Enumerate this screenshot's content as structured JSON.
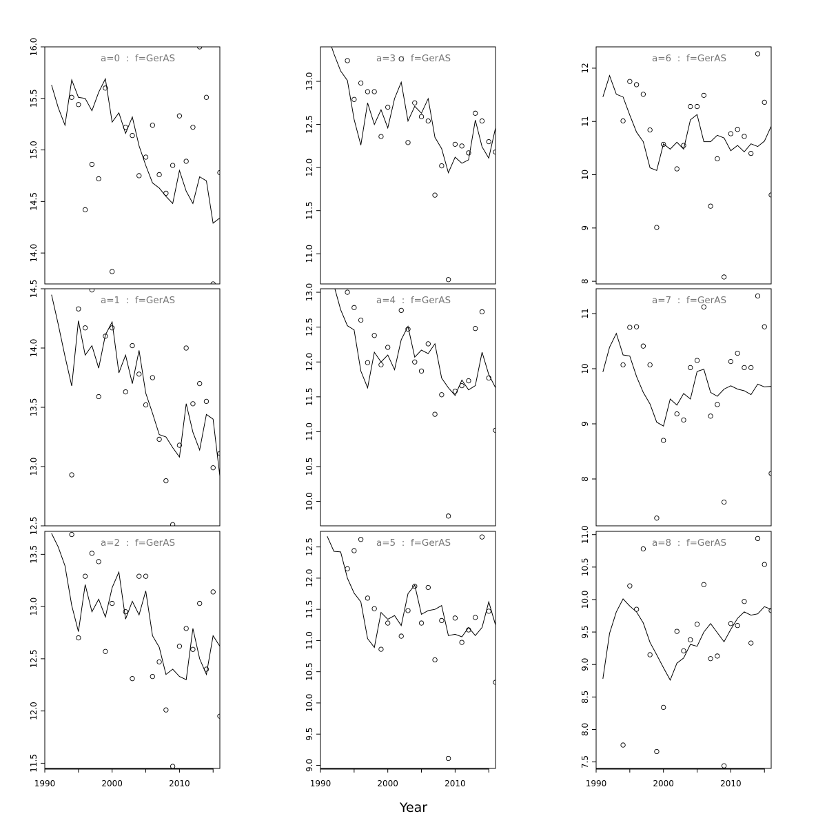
{
  "figure": {
    "xlabel": "Year"
  },
  "chart_data": [
    {
      "type": "line",
      "title": "a=0  :  f=GerAS",
      "xlim": [
        1990,
        2016
      ],
      "ylim": [
        13.7,
        16.0
      ],
      "yticks": [
        14.0,
        14.5,
        15.0,
        15.5,
        16.0
      ],
      "ytick_labels": [
        "14.0",
        "14.5",
        "15.0",
        "15.5",
        "16.0"
      ],
      "xticks": [],
      "xtick_labels": [],
      "line": {
        "x": [
          1991,
          1992,
          1993,
          1994,
          1995,
          1996,
          1997,
          1998,
          1999,
          2000,
          2001,
          2002,
          2003,
          2004,
          2005,
          2006,
          2007,
          2008,
          2009,
          2010,
          2011,
          2012,
          2013,
          2014,
          2015,
          2016
        ],
        "y": [
          15.63,
          15.41,
          15.24,
          15.68,
          15.51,
          15.5,
          15.38,
          15.56,
          15.69,
          15.27,
          15.36,
          15.16,
          15.32,
          15.04,
          14.85,
          14.68,
          14.63,
          14.55,
          14.48,
          14.8,
          14.6,
          14.48,
          14.74,
          14.7,
          14.29,
          14.34
        ]
      },
      "points": {
        "x": [
          1994,
          1995,
          1996,
          1997,
          1998,
          1999,
          2000,
          2002,
          2003,
          2004,
          2005,
          2006,
          2007,
          2008,
          2009,
          2010,
          2011,
          2012,
          2013,
          2014,
          2015,
          2016
        ],
        "y": [
          15.51,
          15.44,
          14.42,
          14.86,
          14.72,
          15.6,
          13.82,
          15.22,
          15.14,
          14.75,
          14.93,
          15.24,
          14.76,
          14.58,
          14.85,
          15.33,
          14.89,
          15.22,
          16.0,
          15.51,
          13.7,
          14.78
        ]
      }
    },
    {
      "type": "line",
      "title": "a=1  :  f=GerAS",
      "xlim": [
        1990,
        2016
      ],
      "ylim": [
        12.5,
        14.5
      ],
      "yticks": [
        12.5,
        13.0,
        13.5,
        14.0,
        14.5
      ],
      "ytick_labels": [
        "12.5",
        "13.0",
        "13.5",
        "14.0",
        "14.5"
      ],
      "xticks": [],
      "xtick_labels": [],
      "line": {
        "x": [
          1991,
          1992,
          1993,
          1994,
          1995,
          1996,
          1997,
          1998,
          1999,
          2000,
          2001,
          2002,
          2003,
          2004,
          2005,
          2006,
          2007,
          2008,
          2009,
          2010,
          2011,
          2012,
          2013,
          2014,
          2015,
          2016
        ],
        "y": [
          14.45,
          14.2,
          13.93,
          13.68,
          14.23,
          13.94,
          14.02,
          13.83,
          14.11,
          14.22,
          13.79,
          13.94,
          13.7,
          13.98,
          13.62,
          13.45,
          13.27,
          13.25,
          13.16,
          13.08,
          13.53,
          13.29,
          13.14,
          13.44,
          13.4,
          12.92
        ]
      },
      "points": {
        "x": [
          1994,
          1995,
          1996,
          1997,
          1998,
          1999,
          2000,
          2002,
          2003,
          2004,
          2005,
          2006,
          2007,
          2008,
          2009,
          2010,
          2011,
          2012,
          2013,
          2014,
          2015,
          2016
        ],
        "y": [
          12.93,
          14.33,
          14.17,
          14.49,
          13.59,
          14.1,
          14.17,
          13.63,
          14.02,
          13.78,
          13.52,
          13.75,
          13.23,
          12.88,
          12.51,
          13.18,
          14.0,
          13.53,
          13.7,
          13.55,
          12.99,
          13.11
        ]
      }
    },
    {
      "type": "line",
      "title": "a=2  :  f=GerAS",
      "xlim": [
        1990,
        2016
      ],
      "ylim": [
        11.45,
        13.72
      ],
      "yticks": [
        11.5,
        12.0,
        12.5,
        13.0,
        13.5
      ],
      "ytick_labels": [
        "11.5",
        "12.0",
        "12.5",
        "13.0",
        "13.5"
      ],
      "xticks": [
        1990,
        2000,
        2010
      ],
      "xtick_labels": [
        "1990",
        "2000",
        "2010"
      ],
      "line": {
        "x": [
          1991,
          1992,
          1993,
          1994,
          1995,
          1996,
          1997,
          1998,
          1999,
          2000,
          2001,
          2002,
          2003,
          2004,
          2005,
          2006,
          2007,
          2008,
          2009,
          2010,
          2011,
          2012,
          2013,
          2014,
          2015,
          2016
        ],
        "y": [
          13.7,
          13.57,
          13.39,
          13.01,
          12.76,
          13.21,
          12.95,
          13.07,
          12.9,
          13.18,
          13.33,
          12.88,
          13.05,
          12.92,
          13.15,
          12.72,
          12.61,
          12.35,
          12.4,
          12.33,
          12.3,
          12.79,
          12.5,
          12.35,
          12.72,
          12.62
        ]
      },
      "points": {
        "x": [
          1994,
          1995,
          1996,
          1997,
          1998,
          1999,
          2000,
          2002,
          2003,
          2004,
          2005,
          2006,
          2007,
          2008,
          2009,
          2010,
          2011,
          2012,
          2013,
          2014,
          2015,
          2016
        ],
        "y": [
          13.69,
          12.7,
          13.29,
          13.51,
          13.43,
          12.57,
          13.03,
          12.95,
          12.31,
          13.29,
          13.29,
          12.33,
          12.47,
          12.01,
          11.47,
          12.62,
          12.79,
          12.59,
          13.03,
          12.4,
          13.14,
          11.95
        ]
      }
    },
    {
      "type": "line",
      "title": "a=3  :  f=GerAS",
      "xlim": [
        1990,
        2016
      ],
      "ylim": [
        10.65,
        13.4
      ],
      "yticks": [
        11.0,
        11.5,
        12.0,
        12.5,
        13.0
      ],
      "ytick_labels": [
        "11.0",
        "11.5",
        "12.0",
        "12.5",
        "13.0"
      ],
      "xticks": [],
      "xtick_labels": [],
      "line": {
        "x": [
          1991,
          1992,
          1993,
          1994,
          1995,
          1996,
          1997,
          1998,
          1999,
          2000,
          2001,
          2002,
          2003,
          2004,
          2005,
          2006,
          2007,
          2008,
          2009,
          2010,
          2011,
          2012,
          2013,
          2014,
          2015,
          2016
        ],
        "y": [
          13.55,
          13.32,
          13.12,
          13.01,
          12.56,
          12.26,
          12.75,
          12.5,
          12.67,
          12.46,
          12.8,
          12.99,
          12.54,
          12.71,
          12.63,
          12.8,
          12.35,
          12.22,
          11.94,
          12.12,
          12.05,
          12.09,
          12.55,
          12.24,
          12.11,
          12.46
        ]
      },
      "points": {
        "x": [
          1994,
          1995,
          1996,
          1997,
          1998,
          1999,
          2000,
          2002,
          2003,
          2004,
          2005,
          2006,
          2007,
          2008,
          2009,
          2010,
          2011,
          2012,
          2013,
          2014,
          2015,
          2016
        ],
        "y": [
          13.24,
          12.79,
          12.98,
          12.88,
          12.88,
          12.36,
          12.7,
          13.26,
          12.29,
          12.75,
          12.59,
          12.54,
          11.68,
          12.02,
          10.7,
          12.27,
          12.25,
          12.17,
          12.63,
          12.54,
          12.3,
          12.18
        ]
      }
    },
    {
      "type": "line",
      "title": "a=4  :  f=GerAS",
      "xlim": [
        1990,
        2016
      ],
      "ylim": [
        9.65,
        13.05
      ],
      "yticks": [
        10.0,
        10.5,
        11.0,
        11.5,
        12.0,
        12.5,
        13.0
      ],
      "ytick_labels": [
        "10.0",
        "10.5",
        "11.0",
        "11.5",
        "12.0",
        "12.5",
        "13.0"
      ],
      "xticks": [],
      "xtick_labels": [],
      "line": {
        "x": [
          1991,
          1992,
          1993,
          1994,
          1995,
          1996,
          1997,
          1998,
          1999,
          2000,
          2001,
          2002,
          2003,
          2004,
          2005,
          2006,
          2007,
          2008,
          2009,
          2010,
          2011,
          2012,
          2013,
          2014,
          2015,
          2016
        ],
        "y": [
          13.5,
          13.1,
          12.75,
          12.52,
          12.46,
          11.87,
          11.63,
          12.14,
          12.0,
          12.1,
          11.89,
          12.32,
          12.51,
          12.07,
          12.17,
          12.12,
          12.26,
          11.77,
          11.63,
          11.52,
          11.74,
          11.6,
          11.66,
          12.14,
          11.82,
          11.63
        ]
      },
      "points": {
        "x": [
          1994,
          1995,
          1996,
          1997,
          1998,
          1999,
          2000,
          2002,
          2003,
          2004,
          2005,
          2006,
          2007,
          2008,
          2009,
          2010,
          2011,
          2012,
          2013,
          2014,
          2015,
          2016
        ],
        "y": [
          13.0,
          12.78,
          12.6,
          11.99,
          12.38,
          11.96,
          12.21,
          12.74,
          12.47,
          12.0,
          11.87,
          12.26,
          11.25,
          11.53,
          9.79,
          11.58,
          11.66,
          11.73,
          12.48,
          12.72,
          11.77,
          11.02
        ]
      }
    },
    {
      "type": "line",
      "title": "a=5  :  f=GerAS",
      "xlim": [
        1990,
        2016
      ],
      "ylim": [
        8.95,
        12.75
      ],
      "yticks": [
        9.0,
        9.5,
        10.0,
        10.5,
        11.0,
        11.5,
        12.0,
        12.5
      ],
      "ytick_labels": [
        "9.0",
        "9.5",
        "10.0",
        "10.5",
        "11.0",
        "11.5",
        "12.0",
        "12.5"
      ],
      "xticks": [
        1990,
        2000,
        2010
      ],
      "xtick_labels": [
        "1990",
        "2000",
        "2010"
      ],
      "line": {
        "x": [
          1991,
          1992,
          1993,
          1994,
          1995,
          1996,
          1997,
          1998,
          1999,
          2000,
          2001,
          2002,
          2003,
          2004,
          2005,
          2006,
          2007,
          2008,
          2009,
          2010,
          2011,
          2012,
          2013,
          2014,
          2015,
          2016
        ],
        "y": [
          12.67,
          12.43,
          12.42,
          12.0,
          11.76,
          11.62,
          11.03,
          10.89,
          11.45,
          11.34,
          11.4,
          11.24,
          11.75,
          11.89,
          11.42,
          11.48,
          11.5,
          11.56,
          11.08,
          11.1,
          11.06,
          11.21,
          11.08,
          11.21,
          11.62,
          11.25
        ]
      },
      "points": {
        "x": [
          1994,
          1995,
          1996,
          1997,
          1998,
          1999,
          2000,
          2002,
          2003,
          2004,
          2005,
          2006,
          2007,
          2008,
          2009,
          2010,
          2011,
          2012,
          2013,
          2014,
          2015,
          2016
        ],
        "y": [
          12.15,
          12.44,
          12.62,
          11.68,
          11.51,
          10.86,
          11.28,
          11.07,
          11.48,
          11.87,
          11.28,
          11.85,
          10.69,
          11.32,
          9.11,
          11.36,
          10.97,
          11.17,
          11.37,
          12.66,
          11.47,
          10.33
        ]
      }
    },
    {
      "type": "line",
      "title": "a=6  :  f=GerAS",
      "xlim": [
        1990,
        2016
      ],
      "ylim": [
        7.95,
        12.4
      ],
      "yticks": [
        8,
        9,
        10,
        11,
        12
      ],
      "ytick_labels": [
        "8",
        "9",
        "10",
        "11",
        "12"
      ],
      "xticks": [],
      "xtick_labels": [],
      "line": {
        "x": [
          1991,
          1992,
          1993,
          1994,
          1995,
          1996,
          1997,
          1998,
          1999,
          2000,
          2001,
          2002,
          2003,
          2004,
          2005,
          2006,
          2007,
          2008,
          2009,
          2010,
          2011,
          2012,
          2013,
          2014,
          2015,
          2016
        ],
        "y": [
          11.46,
          11.86,
          11.51,
          11.46,
          11.12,
          10.8,
          10.62,
          10.13,
          10.08,
          10.58,
          10.48,
          10.61,
          10.48,
          11.03,
          11.13,
          10.62,
          10.62,
          10.74,
          10.69,
          10.45,
          10.55,
          10.43,
          10.58,
          10.53,
          10.63,
          10.91
        ]
      },
      "points": {
        "x": [
          1994,
          1995,
          1996,
          1997,
          1998,
          1999,
          2000,
          2002,
          2003,
          2004,
          2005,
          2006,
          2007,
          2008,
          2009,
          2010,
          2011,
          2012,
          2013,
          2014,
          2015,
          2016
        ],
        "y": [
          11.01,
          11.75,
          11.69,
          11.51,
          10.84,
          9.01,
          10.57,
          10.11,
          10.55,
          11.28,
          11.28,
          11.49,
          9.41,
          10.3,
          8.08,
          10.77,
          10.85,
          10.72,
          10.4,
          12.27,
          11.36,
          9.62
        ]
      }
    },
    {
      "type": "line",
      "title": "a=7  :  f=GerAS",
      "xlim": [
        1990,
        2016
      ],
      "ylim": [
        7.15,
        11.45
      ],
      "yticks": [
        8,
        9,
        10,
        11
      ],
      "ytick_labels": [
        "8",
        "9",
        "10",
        "11"
      ],
      "xticks": [],
      "xtick_labels": [],
      "line": {
        "x": [
          1991,
          1992,
          1993,
          1994,
          1995,
          1996,
          1997,
          1998,
          1999,
          2000,
          2001,
          2002,
          2003,
          2004,
          2005,
          2006,
          2007,
          2008,
          2009,
          2010,
          2011,
          2012,
          2013,
          2014,
          2015,
          2016
        ],
        "y": [
          9.94,
          10.39,
          10.64,
          10.25,
          10.23,
          9.86,
          9.57,
          9.36,
          9.03,
          8.96,
          9.45,
          9.34,
          9.55,
          9.45,
          9.95,
          9.99,
          9.57,
          9.5,
          9.63,
          9.69,
          9.63,
          9.6,
          9.53,
          9.72,
          9.67,
          9.68
        ]
      },
      "points": {
        "x": [
          1994,
          1995,
          1996,
          1997,
          1998,
          1999,
          2000,
          2002,
          2003,
          2004,
          2005,
          2006,
          2007,
          2008,
          2009,
          2010,
          2011,
          2012,
          2013,
          2014,
          2015,
          2016
        ],
        "y": [
          10.07,
          10.75,
          10.76,
          10.41,
          10.07,
          7.29,
          8.7,
          9.18,
          9.07,
          10.02,
          10.15,
          11.12,
          9.14,
          9.35,
          7.58,
          10.13,
          10.28,
          10.02,
          10.02,
          11.32,
          10.76,
          8.1
        ]
      }
    },
    {
      "type": "line",
      "title": "a=8  :  f=GerAS",
      "xlim": [
        1990,
        2016
      ],
      "ylim": [
        7.4,
        11.05
      ],
      "yticks": [
        7.5,
        8.0,
        8.5,
        9.0,
        9.5,
        10.0,
        10.5,
        11.0
      ],
      "ytick_labels": [
        "7.5",
        "8.0",
        "8.5",
        "9.0",
        "9.5",
        "10.0",
        "10.5",
        "11.0"
      ],
      "xticks": [
        1990,
        2000,
        2010
      ],
      "xtick_labels": [
        "1990",
        "2000",
        "2010"
      ],
      "line": {
        "x": [
          1991,
          1992,
          1993,
          1994,
          1995,
          1996,
          1997,
          1998,
          1999,
          2000,
          2001,
          2002,
          2003,
          2004,
          2005,
          2006,
          2007,
          2008,
          2009,
          2010,
          2011,
          2012,
          2013,
          2014,
          2015,
          2016
        ],
        "y": [
          8.78,
          9.48,
          9.81,
          10.01,
          9.9,
          9.81,
          9.64,
          9.34,
          9.15,
          8.95,
          8.76,
          9.02,
          9.1,
          9.31,
          9.28,
          9.5,
          9.63,
          9.49,
          9.35,
          9.54,
          9.71,
          9.81,
          9.76,
          9.78,
          9.89,
          9.85
        ]
      },
      "points": {
        "x": [
          1994,
          1995,
          1996,
          1997,
          1998,
          1999,
          2000,
          2002,
          2003,
          2004,
          2005,
          2006,
          2007,
          2008,
          2009,
          2010,
          2011,
          2012,
          2013,
          2014,
          2015,
          2016
        ],
        "y": [
          7.76,
          10.21,
          9.85,
          10.78,
          9.15,
          7.66,
          8.34,
          9.51,
          9.21,
          9.38,
          9.62,
          10.23,
          9.09,
          9.13,
          7.44,
          9.63,
          9.6,
          9.97,
          9.33,
          10.94,
          10.54,
          9.83
        ]
      }
    }
  ]
}
